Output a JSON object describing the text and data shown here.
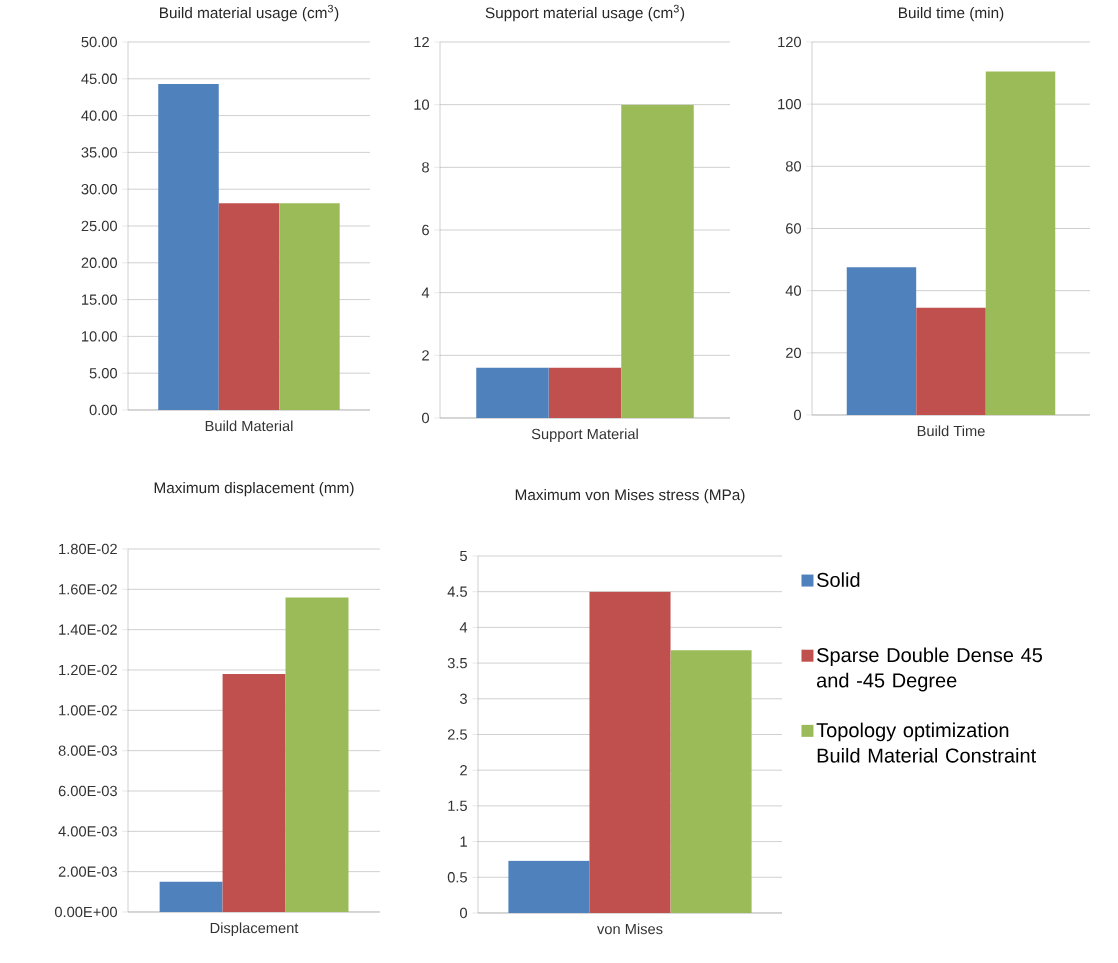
{
  "chart_data": [
    {
      "type": "bar",
      "title": "Build material usage (cm$^{3}$)",
      "categories": [
        null,
        "Build Material",
        null
      ],
      "values": [
        44.3,
        28.1,
        28.1
      ],
      "colors": [
        "#4f81bd",
        "#c0504d",
        "#9bbb59"
      ],
      "ylim": [
        0,
        50
      ],
      "yticks": [
        {
          "value": 0,
          "label": "0.00"
        },
        {
          "value": 5,
          "label": "5.00"
        },
        {
          "value": 10,
          "label": "10.00"
        },
        {
          "value": 15,
          "label": "15.00"
        },
        {
          "value": 20,
          "label": "20.00"
        },
        {
          "value": 25,
          "label": "25.00"
        },
        {
          "value": 30,
          "label": "30.00"
        },
        {
          "value": 35,
          "label": "35.00"
        },
        {
          "value": 40,
          "label": "40.00"
        },
        {
          "value": 45,
          "label": "45.00"
        },
        {
          "value": 50,
          "label": "50.00"
        }
      ],
      "grid": "y"
    },
    {
      "type": "bar",
      "title": "Support material usage (cm$^{3}$)",
      "categories": [
        null,
        "Support Material",
        null
      ],
      "values": [
        1.6,
        1.6,
        10
      ],
      "colors": [
        "#4f81bd",
        "#c0504d",
        "#9bbb59"
      ],
      "ylim": [
        0,
        12
      ],
      "yticks": [
        0,
        2,
        4,
        6,
        8,
        10,
        12
      ],
      "grid": "y"
    },
    {
      "type": "bar",
      "title": "Build time (min)",
      "categories": [
        null,
        "Build Time",
        null
      ],
      "values": [
        47.5,
        34.5,
        110.5
      ],
      "colors": [
        "#4f81bd",
        "#c0504d",
        "#9bbb59"
      ],
      "ylim": [
        0,
        120
      ],
      "yticks": [
        0,
        20,
        40,
        60,
        80,
        100,
        120
      ],
      "grid": "y"
    },
    {
      "type": "bar",
      "title": "Maximum displacement (mm)",
      "categories": [
        null,
        "Displacement",
        null
      ],
      "values": [
        0.0015,
        0.0118,
        0.0156
      ],
      "colors": [
        "#4f81bd",
        "#c0504d",
        "#9bbb59"
      ],
      "ylim": [
        0,
        0.018
      ],
      "yticks": [
        {
          "value": 0,
          "label": "0.00E+00"
        },
        {
          "value": 0.002,
          "label": "2.00E-03"
        },
        {
          "value": 0.004,
          "label": "4.00E-03"
        },
        {
          "value": 0.006,
          "label": "6.00E-03"
        },
        {
          "value": 0.008,
          "label": "8.00E-03"
        },
        {
          "value": 0.01,
          "label": "1.00E-02"
        },
        {
          "value": 0.012,
          "label": "1.20E-02"
        },
        {
          "value": 0.014,
          "label": "1.40E-02"
        },
        {
          "value": 0.016,
          "label": "1.60E-02"
        },
        {
          "value": 0.018,
          "label": "1.80E-02"
        }
      ],
      "grid": "y"
    },
    {
      "type": "bar",
      "title": "Maximum von Mises stress (MPa)",
      "categories": [
        "von Mises"
      ],
      "series": [
        {
          "name": "Solid",
          "color": "#4f81bd",
          "values": [
            0.73
          ]
        },
        {
          "name": "Sparse Double Dense 45 and -45 Degree",
          "color": "#c0504d",
          "values": [
            4.5
          ]
        },
        {
          "name": "Topology optimization Build Material Constraint",
          "color": "#9bbb59",
          "values": [
            3.68
          ]
        }
      ],
      "ylim": [
        0,
        5
      ],
      "yticks": [
        0,
        {
          "value": 0.5,
          "label": "0.5"
        },
        1,
        {
          "value": 1.5,
          "label": "1.5"
        },
        2,
        {
          "value": 2.5,
          "label": "2.5"
        },
        3,
        {
          "value": 3.5,
          "label": "3.5"
        },
        4,
        {
          "value": 4.5,
          "label": "4.5"
        },
        5
      ],
      "grid": "y",
      "legend": "right"
    }
  ]
}
